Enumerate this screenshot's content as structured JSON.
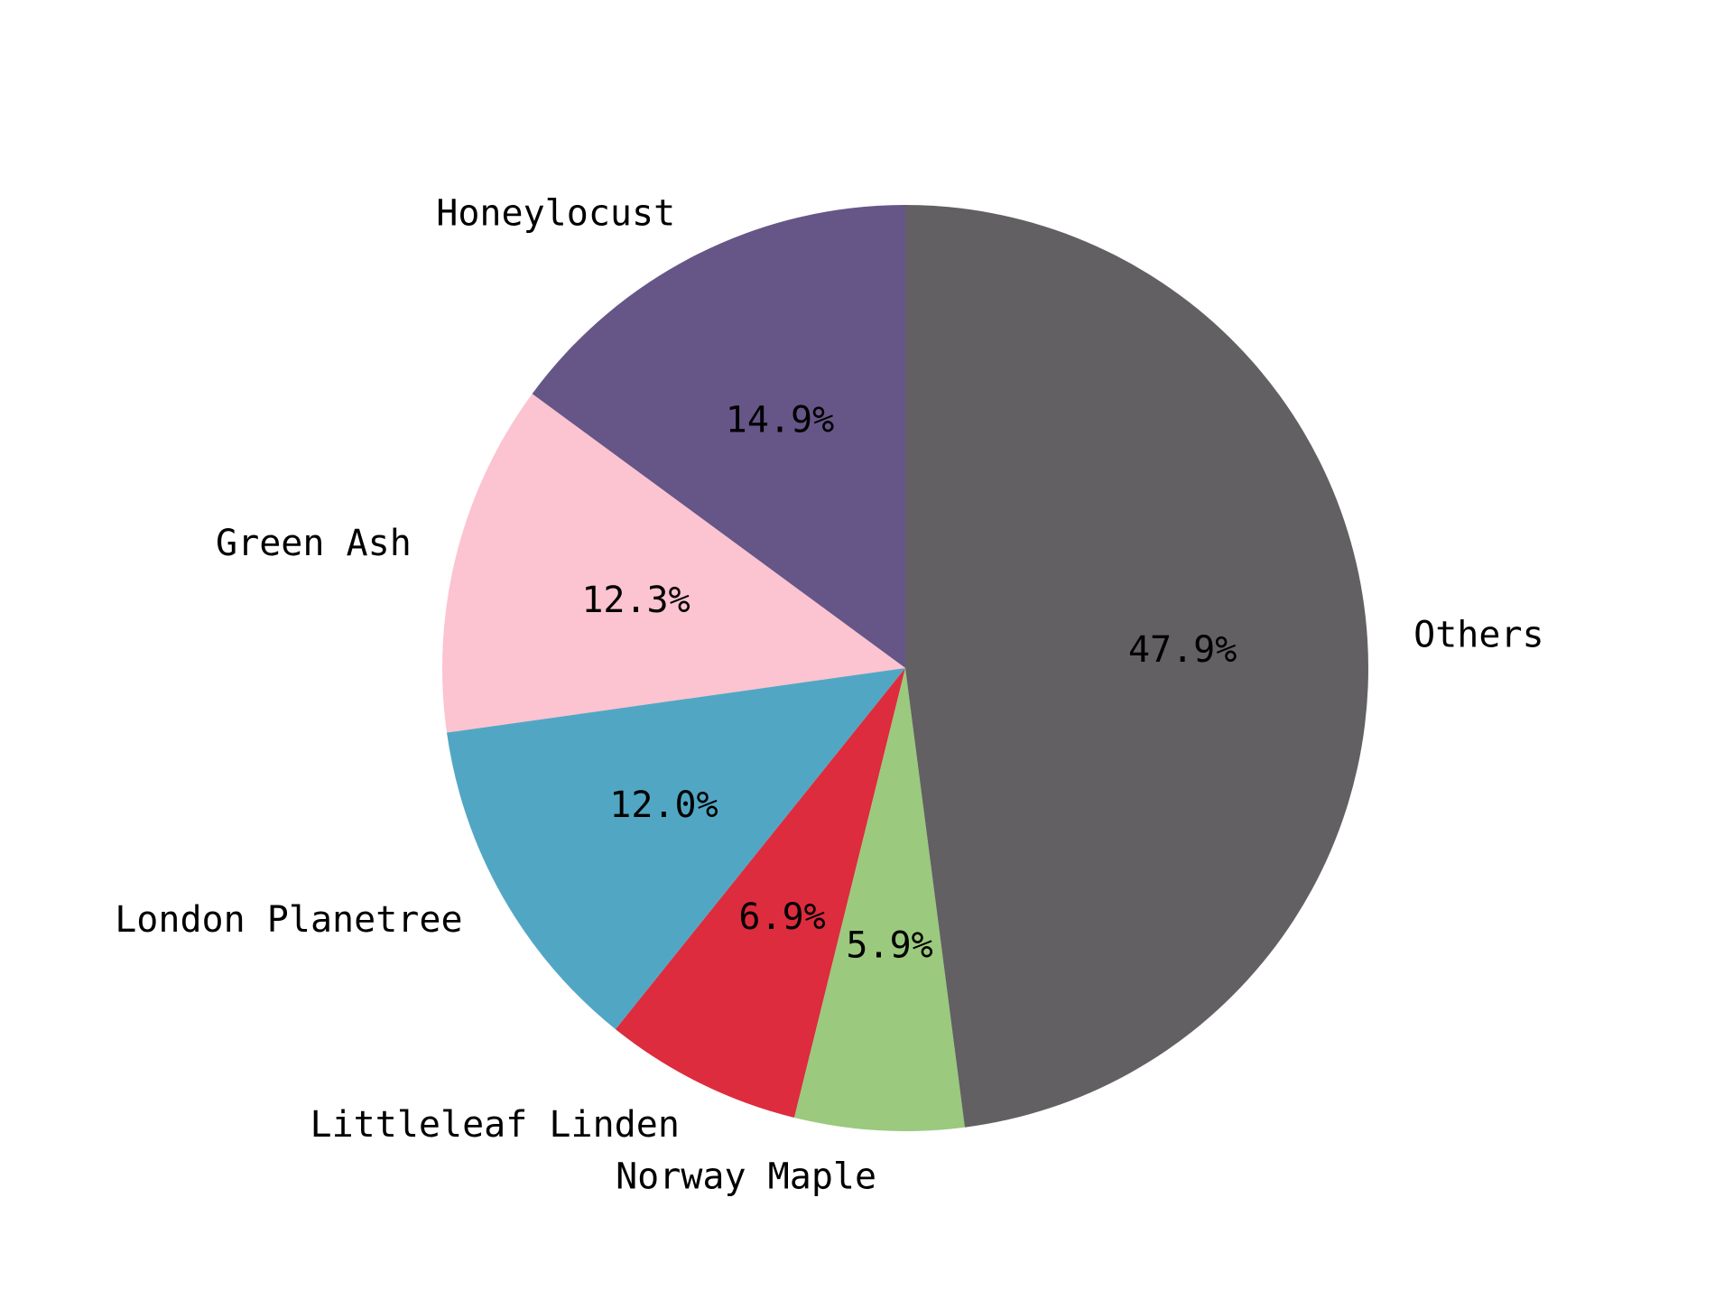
{
  "chart_data": {
    "type": "pie",
    "title": "",
    "start_angle_deg": 90,
    "direction": "counterclockwise",
    "slices": [
      {
        "label": "Honeylocust",
        "value": 14.9,
        "pct_label": "14.9%",
        "color": "#665687"
      },
      {
        "label": "Green Ash",
        "value": 12.3,
        "pct_label": "12.3%",
        "color": "#FCC3D1"
      },
      {
        "label": "London Planetree",
        "value": 12.0,
        "pct_label": "12.0%",
        "color": "#51A7C3"
      },
      {
        "label": "Littleleaf Linden",
        "value": 6.9,
        "pct_label": "6.9%",
        "color": "#DC2C3E"
      },
      {
        "label": "Norway Maple",
        "value": 5.9,
        "pct_label": "5.9%",
        "color": "#9BC97E"
      },
      {
        "label": "Others",
        "value": 47.9,
        "pct_label": "47.9%",
        "color": "#626063"
      }
    ]
  }
}
